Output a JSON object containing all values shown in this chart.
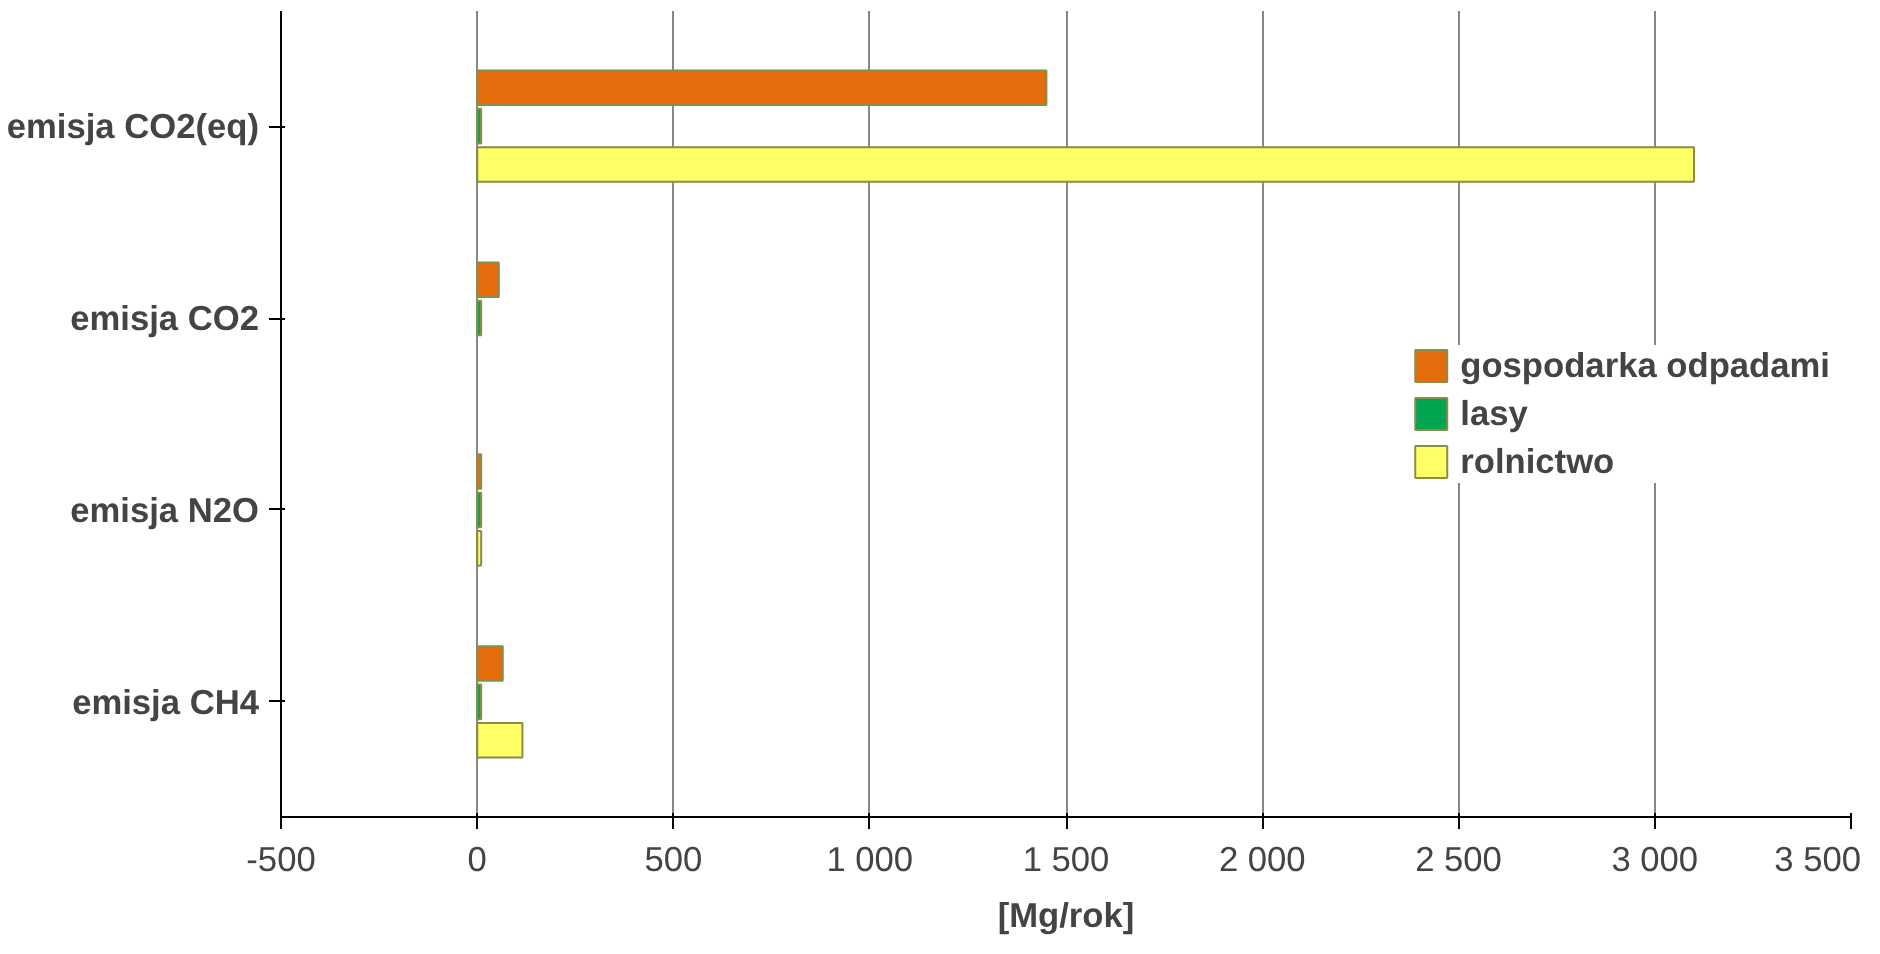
{
  "chart_data": {
    "type": "bar",
    "orientation": "horizontal",
    "xlabel": "[Mg/rok]",
    "categories": [
      "emisja CO2(eq)",
      "emisja CO2",
      "emisja N2O",
      "emisja CH4"
    ],
    "series": [
      {
        "name": "gospodarka odpadami",
        "color": "#e46c0a",
        "values": [
          1450,
          55,
          10,
          65
        ]
      },
      {
        "name": "lasy",
        "color": "#00a651",
        "values": [
          10,
          10,
          10,
          10
        ]
      },
      {
        "name": "rolnictwo",
        "color": "#ffff66",
        "values": [
          3100,
          null,
          10,
          115
        ]
      }
    ],
    "xlim": [
      -500,
      3500
    ],
    "xticks": [
      -500,
      0,
      500,
      {
        "value": 1000,
        "label": "1 000"
      },
      {
        "value": 1500,
        "label": "1 500"
      },
      {
        "value": 2000,
        "label": "2 000"
      },
      {
        "value": 2500,
        "label": "2 500"
      },
      {
        "value": 3000,
        "label": "3 000"
      },
      {
        "value": 3500,
        "label": "3 500"
      }
    ],
    "grid": "x",
    "legend": "right"
  }
}
